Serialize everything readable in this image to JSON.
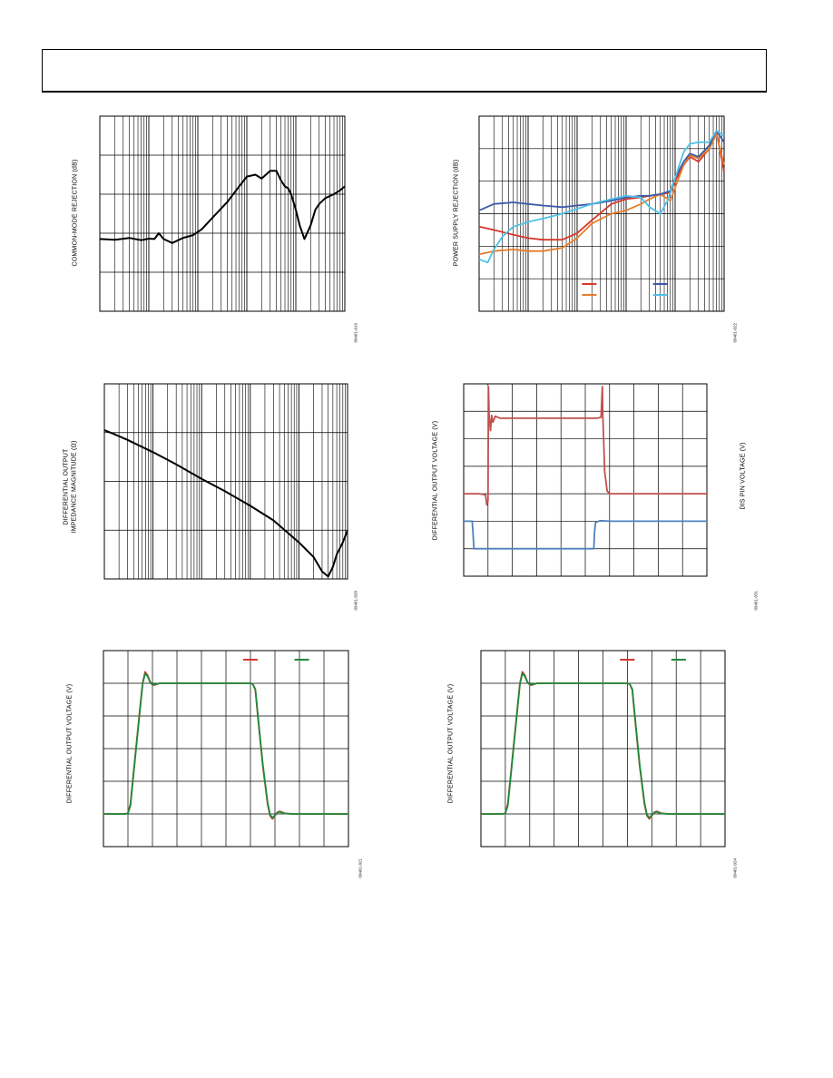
{
  "header": {},
  "figures": [
    {
      "id": "fig-cmrr",
      "ylabel": [
        "COMMON-MODE REJECTION (dB)"
      ],
      "fig_id": "09461-019",
      "chart_data": {
        "type": "line",
        "x_scale": "log",
        "xlim": [
          100000,
          10000000000
        ],
        "ylim": [
          0,
          5
        ],
        "y_divisions": 5,
        "colors": {
          "cmrr": "#000000"
        },
        "series": [
          {
            "key": "cmrr",
            "x": [
              100000,
              200000,
              400000,
              700000,
              1000000,
              1300000,
              1600000,
              2000000,
              3000000,
              5000000,
              8000000,
              12000000,
              20000000,
              40000000,
              70000000,
              100000000,
              150000000,
              200000000,
              300000000,
              400000000,
              500000000,
              600000000,
              700000000,
              800000000,
              1000000000,
              1200000000,
              1500000000,
              2000000000,
              2500000000,
              3000000000,
              4000000000,
              6000000000,
              8000000000,
              10000000000
            ],
            "y": [
              1.85,
              1.83,
              1.88,
              1.82,
              1.86,
              1.85,
              2.0,
              1.85,
              1.75,
              1.88,
              1.95,
              2.1,
              2.4,
              2.8,
              3.2,
              3.45,
              3.5,
              3.4,
              3.6,
              3.6,
              3.35,
              3.2,
              3.15,
              3.0,
              2.6,
              2.2,
              1.85,
              2.2,
              2.6,
              2.75,
              2.9,
              3.0,
              3.1,
              3.2
            ]
          }
        ]
      }
    },
    {
      "id": "fig-psrr",
      "ylabel": [
        "POWER SUPPLY REJECTION (dB)"
      ],
      "fig_id": "09461-022",
      "chart_data": {
        "type": "line",
        "x_scale": "log",
        "xlim": [
          100000,
          10000000000
        ],
        "ylim": [
          0,
          6
        ],
        "y_divisions": 6,
        "legend": {
          "placement": "bottom-right"
        },
        "colors": {
          "s1": "#d6372d",
          "s2": "#e87c2b",
          "s3": "#3b5ba8",
          "s4": "#4fc1e9"
        },
        "series": [
          {
            "key": "s1",
            "x": [
              100000,
              200000,
              500000,
              1000000,
              2000000,
              5000000,
              10000000,
              20000000,
              50000000,
              100000000,
              200000000,
              300000000,
              500000000,
              800000000,
              1000000000,
              1500000000,
              2000000000,
              3000000000,
              5000000000,
              7000000000,
              10000000000
            ],
            "y": [
              2.6,
              2.5,
              2.35,
              2.25,
              2.2,
              2.2,
              2.4,
              2.8,
              3.3,
              3.45,
              3.5,
              3.55,
              3.6,
              3.65,
              4.0,
              4.5,
              4.75,
              4.6,
              5.0,
              5.5,
              4.3
            ]
          },
          {
            "key": "s2",
            "x": [
              100000,
              200000,
              500000,
              1000000,
              2000000,
              5000000,
              10000000,
              20000000,
              50000000,
              100000000,
              200000000,
              300000000,
              500000000,
              800000000,
              1000000000,
              1500000000,
              2000000000,
              3000000000,
              5000000000,
              7000000000,
              10000000000
            ],
            "y": [
              1.75,
              1.85,
              1.9,
              1.85,
              1.85,
              1.95,
              2.25,
              2.7,
              3.0,
              3.1,
              3.3,
              3.45,
              3.6,
              3.4,
              3.8,
              4.5,
              4.8,
              4.7,
              5.0,
              5.45,
              4.5
            ]
          },
          {
            "key": "s3",
            "x": [
              100000,
              200000,
              500000,
              1000000,
              2000000,
              5000000,
              10000000,
              20000000,
              50000000,
              100000000,
              200000000,
              300000000,
              500000000,
              800000000,
              1000000000,
              1500000000,
              2000000000,
              3000000000,
              5000000000,
              7000000000,
              10000000000
            ],
            "y": [
              3.1,
              3.3,
              3.35,
              3.3,
              3.25,
              3.2,
              3.25,
              3.3,
              3.4,
              3.5,
              3.55,
              3.55,
              3.6,
              3.7,
              4.1,
              4.6,
              4.85,
              4.75,
              5.1,
              5.55,
              5.2
            ]
          },
          {
            "key": "s4",
            "x": [
              100000,
              150000,
              200000,
              300000,
              500000,
              1000000,
              2000000,
              5000000,
              10000000,
              20000000,
              50000000,
              100000000,
              200000000,
              300000000,
              500000000,
              700000000,
              1000000000,
              1500000000,
              2000000000,
              3000000000,
              5000000000,
              7000000000,
              10000000000
            ],
            "y": [
              1.6,
              1.5,
              1.9,
              2.3,
              2.6,
              2.75,
              2.85,
              3.0,
              3.15,
              3.3,
              3.45,
              3.55,
              3.5,
              3.2,
              3.0,
              3.4,
              4.1,
              4.9,
              5.15,
              5.2,
              5.2,
              5.55,
              5.4
            ]
          }
        ]
      }
    },
    {
      "id": "fig-zout",
      "ylabel": [
        "DIFFERENTIAL OUTPUT",
        "IMPEDANCE MAGNITUDE (Ω)"
      ],
      "fig_id": "09461-020",
      "chart_data": {
        "type": "line",
        "x_scale": "log",
        "xlim": [
          100000,
          10000000000
        ],
        "ylim": [
          0,
          4
        ],
        "y_divisions": 4,
        "colors": {
          "zout": "#000000"
        },
        "series": [
          {
            "key": "zout",
            "x": [
              100000,
              150000,
              300000,
              1000000,
              3000000,
              10000000,
              30000000,
              100000000,
              300000000,
              1000000000,
              2000000000,
              3000000000,
              4000000000,
              5000000000,
              6000000000,
              8000000000,
              10000000000
            ],
            "y": [
              3.05,
              2.98,
              2.85,
              2.6,
              2.35,
              2.05,
              1.8,
              1.5,
              1.2,
              0.75,
              0.45,
              0.15,
              0.05,
              0.25,
              0.5,
              0.75,
              1.0
            ]
          }
        ]
      }
    },
    {
      "id": "fig-dis",
      "ylabel": [
        "DIFFERENTIAL OUTPUT VOLTAGE (V)"
      ],
      "ylabel_right": "DIS PIN VOLTAGE (V)",
      "fig_id": "09461-031",
      "chart_data": {
        "type": "line",
        "xlim": [
          0,
          10
        ],
        "ylim": [
          0,
          7
        ],
        "y_divisions": 7,
        "colors": {
          "vout": "#c0504d",
          "vdis": "#4f81bd"
        },
        "series": [
          {
            "key": "vout",
            "x": [
              0,
              0.3,
              0.6,
              0.8,
              0.9,
              0.95,
              1.0,
              1.02,
              1.05,
              1.1,
              1.15,
              1.2,
              1.3,
              1.5,
              2,
              4,
              5.5,
              5.65,
              5.7,
              5.72,
              5.75,
              5.8,
              5.9,
              6.0,
              6.2,
              7,
              8,
              9,
              10
            ],
            "y": [
              3.0,
              3.0,
              3.0,
              2.98,
              2.95,
              2.6,
              2.75,
              6.9,
              5.8,
              5.3,
              5.85,
              5.6,
              5.82,
              5.75,
              5.75,
              5.75,
              5.75,
              5.78,
              6.9,
              5.9,
              5.1,
              3.8,
              3.1,
              3.0,
              3.0,
              3.0,
              3.0,
              3.0,
              3.0
            ]
          },
          {
            "key": "vdis",
            "x": [
              0,
              0.35,
              0.38,
              0.42,
              1,
              2,
              3,
              4,
              5,
              5.35,
              5.38,
              5.42,
              5.6,
              6,
              7,
              8,
              9,
              10
            ],
            "y": [
              2.0,
              2.0,
              1.6,
              1.0,
              1.0,
              1.0,
              1.0,
              1.0,
              1.0,
              1.0,
              1.6,
              1.95,
              2.02,
              2.0,
              2.0,
              2.0,
              2.0,
              2.0
            ]
          }
        ]
      }
    },
    {
      "id": "fig-step1",
      "ylabel": [
        "DIFFERENTIAL OUTPUT VOLTAGE (V)"
      ],
      "fig_id": "09461-021",
      "chart_data": {
        "type": "line",
        "xlim": [
          0,
          10
        ],
        "ylim": [
          0,
          6
        ],
        "y_divisions": 6,
        "legend": {
          "placement": "top-right"
        },
        "colors": {
          "a": "#d6372d",
          "b": "#1f8a3c"
        },
        "series": [
          {
            "key": "a",
            "x": [
              0,
              0.9,
              1.0,
              1.1,
              1.3,
              1.5,
              1.6,
              1.7,
              1.8,
              1.9,
              2.0,
              2.1,
              2.3,
              2.6,
              3,
              4,
              5,
              5.6,
              6.0,
              6.1,
              6.2,
              6.3,
              6.5,
              6.7,
              6.8,
              6.9,
              7.0,
              7.1,
              7.2,
              7.4,
              7.7,
              8,
              9,
              10
            ],
            "y": [
              1.0,
              1.0,
              1.03,
              1.3,
              2.8,
              4.3,
              5.0,
              5.35,
              5.25,
              5.05,
              4.95,
              4.95,
              5.0,
              5.0,
              5.0,
              5.0,
              5.0,
              5.0,
              5.0,
              4.97,
              4.8,
              4.0,
              2.5,
              1.3,
              0.95,
              0.85,
              0.95,
              1.05,
              1.08,
              1.02,
              1.0,
              1.0,
              1.0,
              1.0
            ]
          },
          {
            "key": "b",
            "x": [
              0,
              0.9,
              1.0,
              1.1,
              1.3,
              1.5,
              1.6,
              1.7,
              1.8,
              1.9,
              2.0,
              2.1,
              2.3,
              2.6,
              3,
              4,
              5,
              5.6,
              6.0,
              6.1,
              6.2,
              6.3,
              6.5,
              6.7,
              6.8,
              6.9,
              7.0,
              7.1,
              7.2,
              7.4,
              7.7,
              8,
              9,
              10
            ],
            "y": [
              1.0,
              1.0,
              1.02,
              1.25,
              2.75,
              4.25,
              4.98,
              5.3,
              5.22,
              5.04,
              4.96,
              4.96,
              5.0,
              5.0,
              5.0,
              5.0,
              5.0,
              5.0,
              5.0,
              4.97,
              4.82,
              4.05,
              2.55,
              1.35,
              0.98,
              0.88,
              0.96,
              1.04,
              1.06,
              1.01,
              1.0,
              1.0,
              1.0,
              1.0
            ]
          }
        ]
      }
    },
    {
      "id": "fig-step2",
      "ylabel": [
        "DIFFERENTIAL OUTPUT VOLTAGE (V)"
      ],
      "fig_id": "09461-024",
      "chart_data": {
        "type": "line",
        "xlim": [
          0,
          10
        ],
        "ylim": [
          0,
          6
        ],
        "y_divisions": 6,
        "legend": {
          "placement": "top-right"
        },
        "colors": {
          "a": "#d6372d",
          "b": "#1f8a3c"
        },
        "series": [
          {
            "key": "a",
            "x": [
              0,
              0.9,
              1.0,
              1.1,
              1.3,
              1.5,
              1.6,
              1.7,
              1.8,
              1.9,
              2.0,
              2.1,
              2.3,
              2.6,
              3,
              4,
              5,
              5.6,
              6.0,
              6.1,
              6.2,
              6.3,
              6.5,
              6.7,
              6.8,
              6.9,
              7.0,
              7.1,
              7.2,
              7.4,
              7.7,
              8,
              9,
              10
            ],
            "y": [
              1.0,
              1.0,
              1.03,
              1.3,
              2.8,
              4.3,
              5.0,
              5.35,
              5.25,
              5.05,
              4.95,
              4.95,
              5.0,
              5.0,
              5.0,
              5.0,
              5.0,
              5.0,
              5.0,
              4.97,
              4.8,
              4.0,
              2.5,
              1.3,
              0.95,
              0.85,
              0.95,
              1.05,
              1.08,
              1.02,
              1.0,
              1.0,
              1.0,
              1.0
            ]
          },
          {
            "key": "b",
            "x": [
              0,
              0.9,
              1.0,
              1.1,
              1.3,
              1.5,
              1.6,
              1.7,
              1.8,
              1.9,
              2.0,
              2.1,
              2.3,
              2.6,
              3,
              4,
              5,
              5.6,
              6.0,
              6.1,
              6.2,
              6.3,
              6.5,
              6.7,
              6.8,
              6.9,
              7.0,
              7.1,
              7.2,
              7.4,
              7.7,
              8,
              9,
              10
            ],
            "y": [
              1.0,
              1.0,
              1.02,
              1.25,
              2.75,
              4.25,
              4.98,
              5.3,
              5.22,
              5.04,
              4.96,
              4.96,
              5.0,
              5.0,
              5.0,
              5.0,
              5.0,
              5.0,
              5.0,
              4.97,
              4.82,
              4.05,
              2.55,
              1.35,
              0.98,
              0.88,
              0.96,
              1.04,
              1.06,
              1.01,
              1.0,
              1.0,
              1.0,
              1.0
            ]
          }
        ]
      }
    }
  ]
}
